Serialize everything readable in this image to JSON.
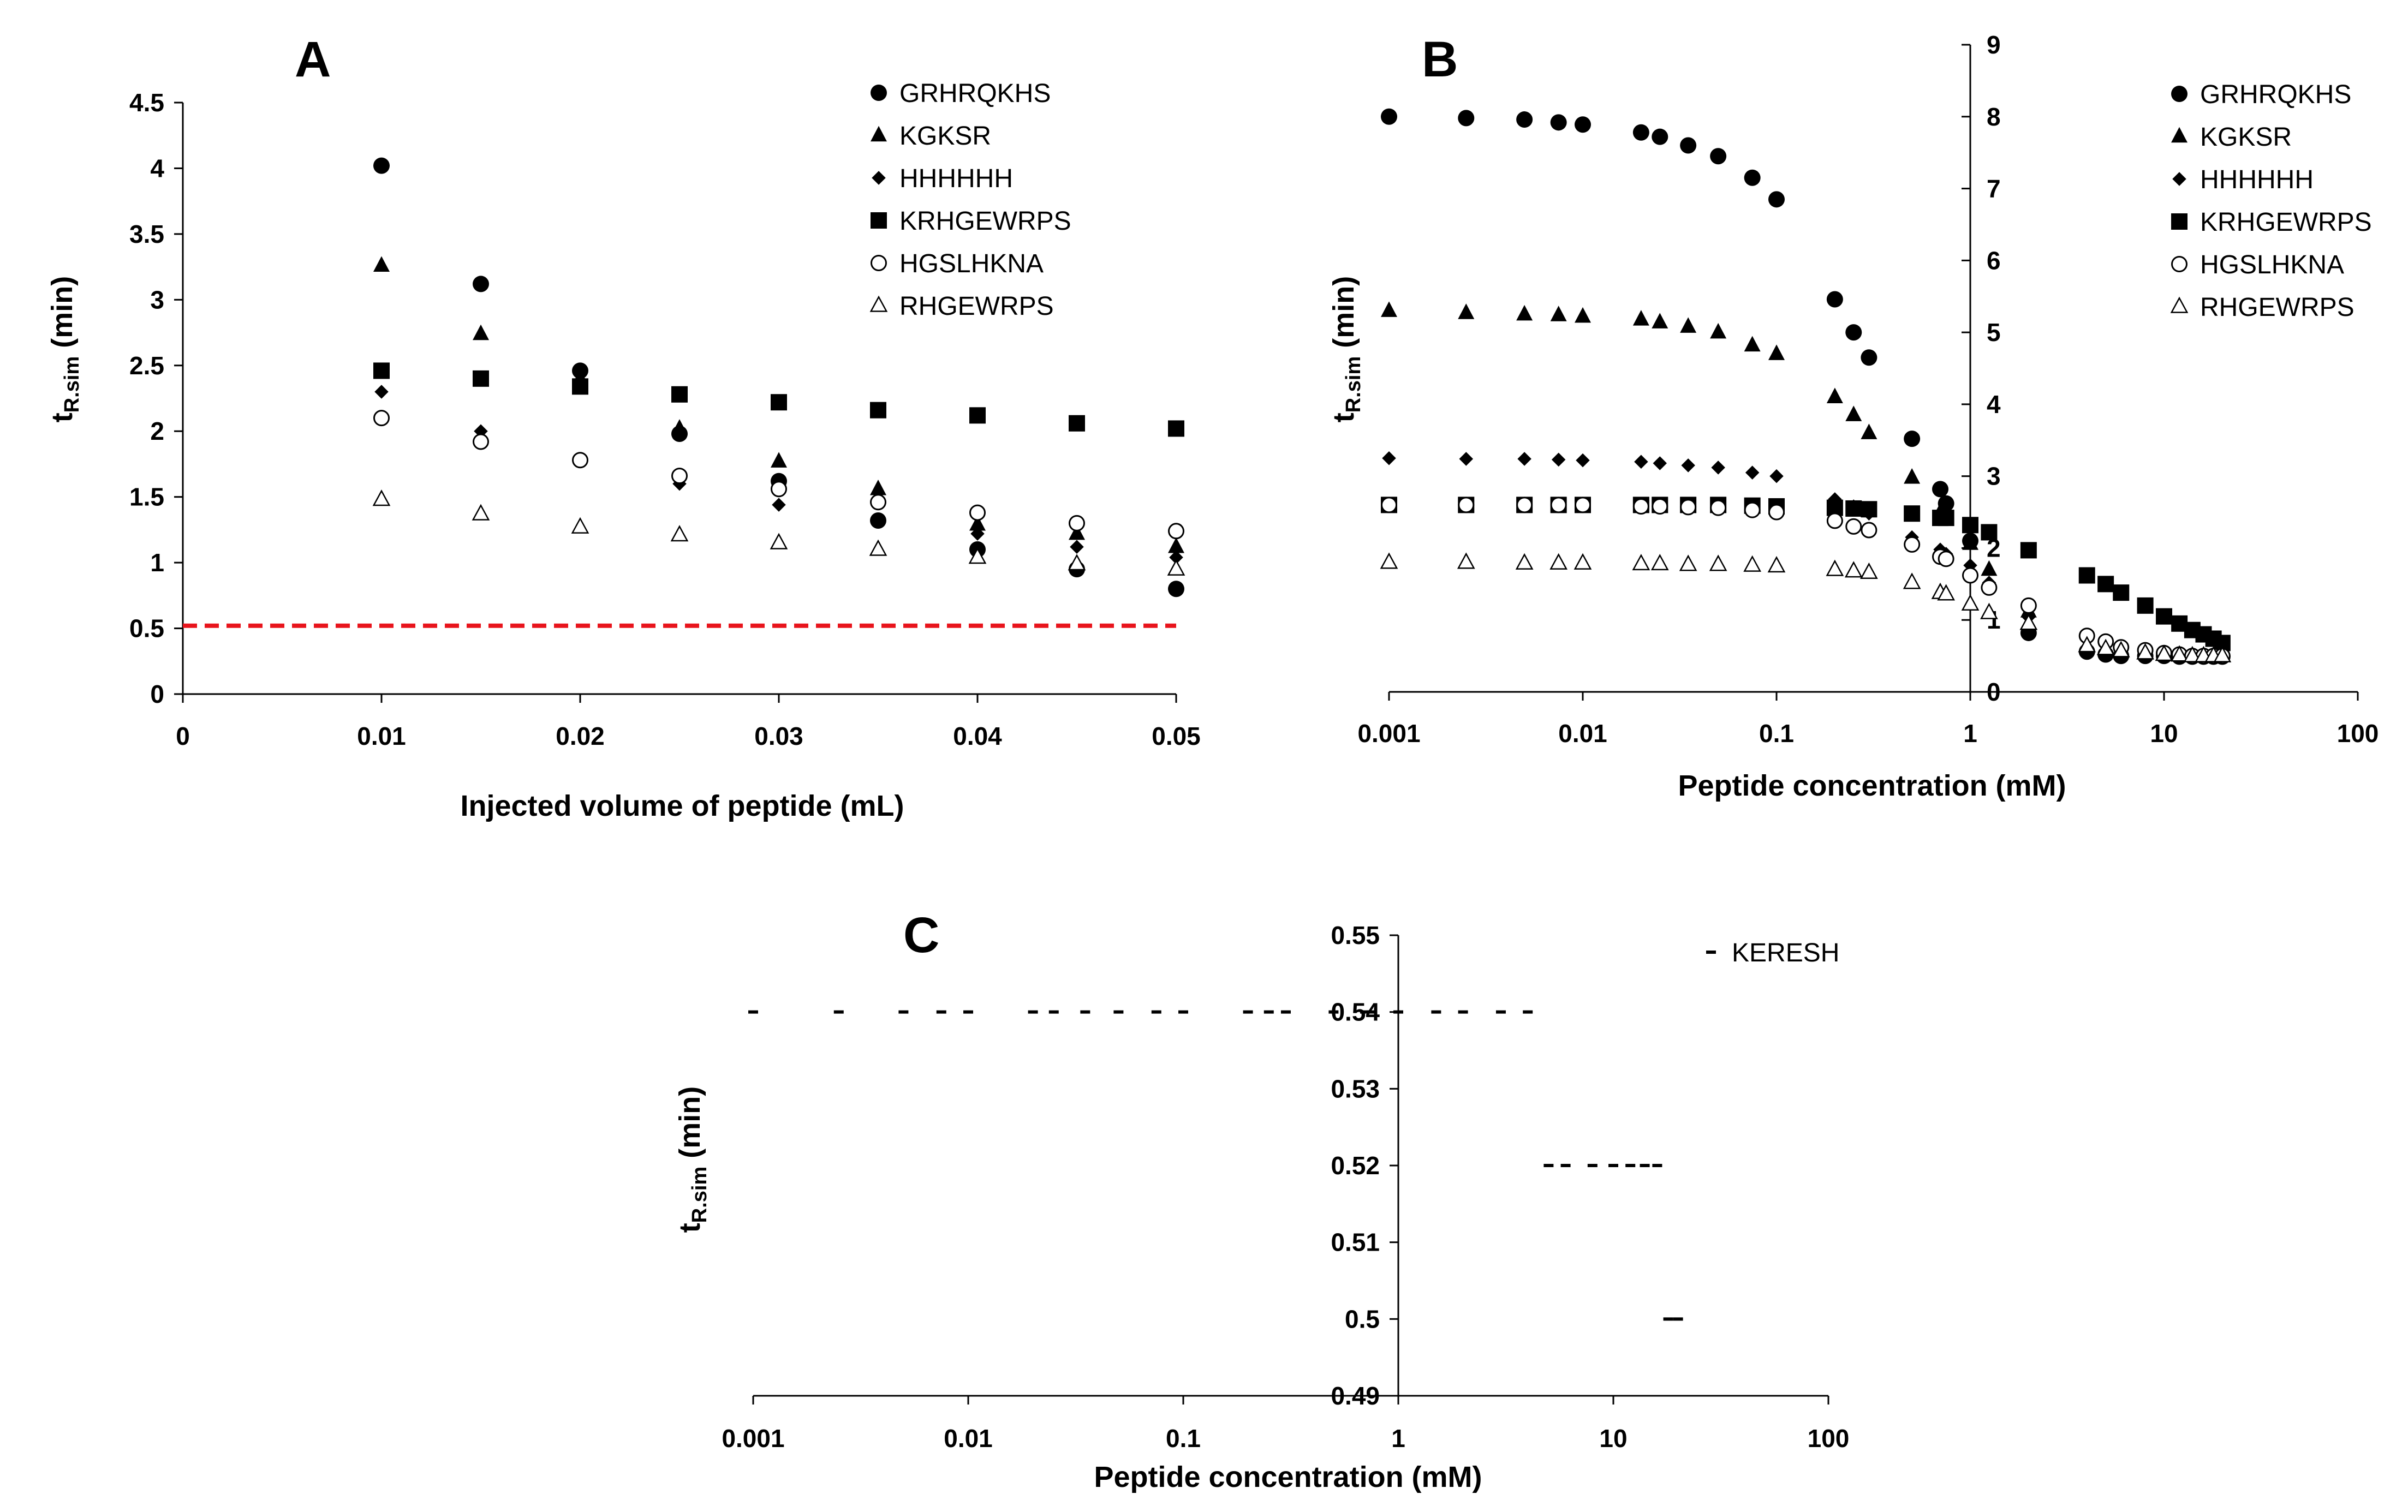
{
  "chart_data": [
    {
      "panel": "A",
      "type": "scatter",
      "title": "",
      "xlabel": "Injected volume of peptide (mL)",
      "ylabel_main": "t",
      "ylabel_sub": "R.sim",
      "ylabel_unit": " (min)",
      "x_scale": "linear",
      "xlim": [
        0,
        0.05
      ],
      "ylim": [
        0,
        4.5
      ],
      "x_ticks": [
        0,
        0.01,
        0.02,
        0.03,
        0.04,
        0.05
      ],
      "x_tick_labels": [
        "0",
        "0.01",
        "0.02",
        "0.03",
        "0.04",
        "0.05"
      ],
      "y_ticks": [
        0,
        0.5,
        1,
        1.5,
        2,
        2.5,
        3,
        3.5,
        4,
        4.5
      ],
      "y_tick_labels": [
        "0",
        "0.5",
        "1",
        "1.5",
        "2",
        "2.5",
        "3",
        "3.5",
        "4",
        "4.5"
      ],
      "legend_position": "top-right",
      "reference_line": {
        "y": 0.52,
        "color": "#e8141c",
        "style": "dashed"
      },
      "x": [
        0.01,
        0.015,
        0.02,
        0.025,
        0.03,
        0.035,
        0.04,
        0.045,
        0.05
      ],
      "series": [
        {
          "name": "GRHRQKHS",
          "marker": "circle-filled",
          "values": [
            4.02,
            3.12,
            2.46,
            1.98,
            1.62,
            1.32,
            1.1,
            0.95,
            0.8
          ]
        },
        {
          "name": "KGKSR",
          "marker": "triangle-filled",
          "values": [
            3.26,
            2.74,
            2.4,
            2.02,
            1.77,
            1.56,
            1.29,
            1.22,
            1.12
          ]
        },
        {
          "name": "HHHHHH",
          "marker": "diamond-filled",
          "values": [
            2.3,
            2.0,
            1.78,
            1.6,
            1.44,
            1.48,
            1.22,
            1.12,
            1.04
          ]
        },
        {
          "name": "KRHGEWRPS",
          "marker": "square-filled",
          "values": [
            2.46,
            2.4,
            2.34,
            2.28,
            2.22,
            2.16,
            2.12,
            2.06,
            2.02
          ]
        },
        {
          "name": "HGSLHKNA",
          "marker": "circle-open",
          "values": [
            2.1,
            1.92,
            1.78,
            1.66,
            1.56,
            1.46,
            1.38,
            1.3,
            1.24
          ]
        },
        {
          "name": "RHGEWRPS",
          "marker": "triangle-open",
          "values": [
            1.48,
            1.37,
            1.27,
            1.21,
            1.15,
            1.1,
            1.04,
            0.99,
            0.95
          ]
        }
      ]
    },
    {
      "panel": "B",
      "type": "scatter",
      "title": "",
      "xlabel": "Peptide concentration (mM)",
      "ylabel_main": "t",
      "ylabel_sub": "R.sim",
      "ylabel_unit": " (min)",
      "x_scale": "log",
      "xlim": [
        0.001,
        100
      ],
      "ylim": [
        0,
        9
      ],
      "y_axis_crosses_x_at": 1,
      "x_ticks": [
        0.001,
        0.01,
        0.1,
        1,
        10,
        100
      ],
      "x_tick_labels": [
        "0.001",
        "0.01",
        "0.1",
        "1",
        "10",
        "100"
      ],
      "y_ticks": [
        0,
        1,
        2,
        3,
        4,
        5,
        6,
        7,
        8,
        9
      ],
      "y_tick_labels": [
        "0",
        "1",
        "2",
        "3",
        "4",
        "5",
        "6",
        "7",
        "8",
        "9"
      ],
      "legend_position": "top-right",
      "series": [
        {
          "name": "GRHRQKHS",
          "marker": "circle-filled",
          "x": [
            0.001,
            0.0025,
            0.005,
            0.0075,
            0.01,
            0.02,
            0.025,
            0.035,
            0.05,
            0.075,
            0.1,
            0.2,
            0.25,
            0.3,
            0.5,
            0.7,
            0.75,
            1,
            2,
            4,
            5,
            6,
            8,
            10,
            12,
            14,
            16,
            18,
            20
          ],
          "values": [
            8.0,
            7.98,
            7.96,
            7.92,
            7.89,
            7.78,
            7.72,
            7.6,
            7.45,
            7.15,
            6.85,
            5.46,
            5.0,
            4.65,
            3.52,
            2.82,
            2.62,
            2.1,
            0.82,
            0.56,
            0.52,
            0.5,
            0.5,
            0.5,
            0.49,
            0.49,
            0.49,
            0.49,
            0.49
          ]
        },
        {
          "name": "KGKSR",
          "marker": "triangle-filled",
          "x": [
            0.001,
            0.0025,
            0.005,
            0.0075,
            0.01,
            0.02,
            0.025,
            0.035,
            0.05,
            0.075,
            0.1,
            0.2,
            0.25,
            0.3,
            0.5,
            0.7,
            0.75,
            1,
            1.25,
            2,
            4,
            5,
            6,
            8,
            10,
            12,
            14,
            16,
            18,
            20
          ],
          "values": [
            5.3,
            5.27,
            5.25,
            5.24,
            5.22,
            5.18,
            5.14,
            5.08,
            5.0,
            4.82,
            4.7,
            4.1,
            3.85,
            3.6,
            2.98,
            2.5,
            2.42,
            2.06,
            1.7,
            1.12,
            0.62,
            0.58,
            0.56,
            0.54,
            0.52,
            0.51,
            0.5,
            0.5,
            0.5,
            0.5
          ]
        },
        {
          "name": "HHHHHH",
          "marker": "diamond-filled",
          "x": [
            0.001,
            0.0025,
            0.005,
            0.0075,
            0.01,
            0.02,
            0.025,
            0.035,
            0.05,
            0.075,
            0.1,
            0.2,
            0.25,
            0.3,
            0.5,
            0.7,
            0.75,
            1,
            1.25,
            2,
            4,
            5,
            6,
            8,
            10,
            12,
            14,
            16,
            18,
            20
          ],
          "values": [
            3.25,
            3.24,
            3.24,
            3.23,
            3.22,
            3.2,
            3.18,
            3.15,
            3.12,
            3.05,
            3.0,
            2.68,
            2.58,
            2.48,
            2.15,
            1.98,
            1.92,
            1.76,
            1.52,
            1.04,
            0.58,
            0.55,
            0.53,
            0.52,
            0.51,
            0.5,
            0.5,
            0.5,
            0.5,
            0.5
          ]
        },
        {
          "name": "KRHGEWRPS",
          "marker": "square-filled",
          "x": [
            0.001,
            0.0025,
            0.005,
            0.0075,
            0.01,
            0.02,
            0.025,
            0.035,
            0.05,
            0.075,
            0.1,
            0.2,
            0.25,
            0.3,
            0.5,
            0.7,
            0.75,
            1,
            1.25,
            2,
            4,
            5,
            6,
            8,
            10,
            12,
            14,
            16,
            18,
            20
          ],
          "values": [
            2.6,
            2.6,
            2.6,
            2.6,
            2.6,
            2.6,
            2.6,
            2.6,
            2.6,
            2.59,
            2.58,
            2.56,
            2.55,
            2.54,
            2.48,
            2.42,
            2.42,
            2.32,
            2.22,
            1.97,
            1.62,
            1.5,
            1.38,
            1.2,
            1.05,
            0.95,
            0.86,
            0.8,
            0.74,
            0.68
          ]
        },
        {
          "name": "HGSLHKNA",
          "marker": "circle-open",
          "x": [
            0.001,
            0.0025,
            0.005,
            0.0075,
            0.01,
            0.02,
            0.025,
            0.035,
            0.05,
            0.075,
            0.1,
            0.2,
            0.25,
            0.3,
            0.5,
            0.7,
            0.75,
            1,
            1.25,
            2,
            4,
            5,
            6,
            8,
            10,
            12,
            14,
            16,
            18,
            20
          ],
          "values": [
            2.6,
            2.6,
            2.6,
            2.6,
            2.6,
            2.58,
            2.58,
            2.57,
            2.56,
            2.53,
            2.5,
            2.38,
            2.3,
            2.25,
            2.05,
            1.88,
            1.85,
            1.62,
            1.45,
            1.2,
            0.78,
            0.7,
            0.62,
            0.58,
            0.54,
            0.52,
            0.5,
            0.5,
            0.5,
            0.5
          ]
        },
        {
          "name": "RHGEWRPS",
          "marker": "triangle-open",
          "x": [
            0.001,
            0.0025,
            0.005,
            0.0075,
            0.01,
            0.02,
            0.025,
            0.035,
            0.05,
            0.075,
            0.1,
            0.2,
            0.25,
            0.3,
            0.5,
            0.7,
            0.75,
            1,
            1.25,
            2,
            4,
            5,
            6,
            8,
            10,
            12,
            14,
            16,
            18,
            20
          ],
          "values": [
            1.8,
            1.8,
            1.79,
            1.79,
            1.79,
            1.78,
            1.78,
            1.77,
            1.77,
            1.76,
            1.75,
            1.7,
            1.68,
            1.66,
            1.52,
            1.38,
            1.36,
            1.22,
            1.1,
            0.95,
            0.64,
            0.6,
            0.57,
            0.54,
            0.52,
            0.51,
            0.5,
            0.5,
            0.5,
            0.5
          ]
        }
      ]
    },
    {
      "panel": "C",
      "type": "scatter",
      "title": "",
      "xlabel": "Peptide concentration (mM)",
      "ylabel_main": "t",
      "ylabel_sub": "R.sim",
      "ylabel_unit": " (min)",
      "x_scale": "log",
      "xlim": [
        0.001,
        100
      ],
      "ylim": [
        0.49,
        0.55
      ],
      "y_axis_crosses_x_at": 1,
      "x_ticks": [
        0.001,
        0.01,
        0.1,
        1,
        10,
        100
      ],
      "x_tick_labels": [
        "0.001",
        "0.01",
        "0.1",
        "1",
        "10",
        "100"
      ],
      "y_ticks": [
        0.49,
        0.5,
        0.51,
        0.52,
        0.53,
        0.54,
        0.55
      ],
      "y_tick_labels": [
        "0.49",
        "0.5",
        "0.51",
        "0.52",
        "0.53",
        "0.54",
        "0.55"
      ],
      "legend_position": "top-right",
      "series": [
        {
          "name": "KERESH",
          "marker": "dash",
          "x": [
            0.001,
            0.0025,
            0.005,
            0.0075,
            0.01,
            0.02,
            0.025,
            0.035,
            0.05,
            0.075,
            0.1,
            0.2,
            0.25,
            0.3,
            0.5,
            0.7,
            0.75,
            1,
            1.5,
            2,
            3,
            4,
            5,
            6,
            8,
            10,
            12,
            14,
            16,
            18,
            20
          ],
          "values": [
            0.54,
            0.54,
            0.54,
            0.54,
            0.54,
            0.54,
            0.54,
            0.54,
            0.54,
            0.54,
            0.54,
            0.54,
            0.54,
            0.54,
            0.54,
            0.54,
            0.54,
            0.54,
            0.54,
            0.54,
            0.54,
            0.54,
            0.52,
            0.52,
            0.52,
            0.52,
            0.52,
            0.52,
            0.52,
            0.5,
            0.5
          ]
        }
      ]
    }
  ]
}
